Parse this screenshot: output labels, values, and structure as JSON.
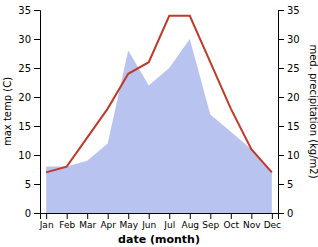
{
  "chart_data": {
    "type": "line",
    "x_label": "date (month)",
    "y_label": "max temp (C)",
    "y2_label": "med. precipitation (kg/m2)",
    "categories": [
      "Jan",
      "Feb",
      "Mar",
      "Apr",
      "May",
      "Jun",
      "Jul",
      "Aug",
      "Sep",
      "Oct",
      "Nov",
      "Dec"
    ],
    "series": [
      {
        "type": "area",
        "color": "#b8c4ef",
        "axis": "y2",
        "values": [
          8,
          8,
          9,
          12,
          28,
          22,
          25,
          30,
          17,
          14,
          11,
          7
        ]
      },
      {
        "type": "line",
        "color": "#c0392b",
        "values": [
          7,
          8,
          13,
          18,
          24,
          26,
          34,
          34,
          26,
          18,
          11,
          7
        ]
      }
    ],
    "ylim": [
      0,
      35
    ],
    "yticks": [
      0,
      5,
      10,
      15,
      20,
      25,
      30,
      35
    ],
    "y2lim": [
      0,
      35
    ],
    "y2ticks": [
      0,
      5,
      10,
      15,
      20,
      25,
      30,
      35
    ],
    "grid": false
  }
}
